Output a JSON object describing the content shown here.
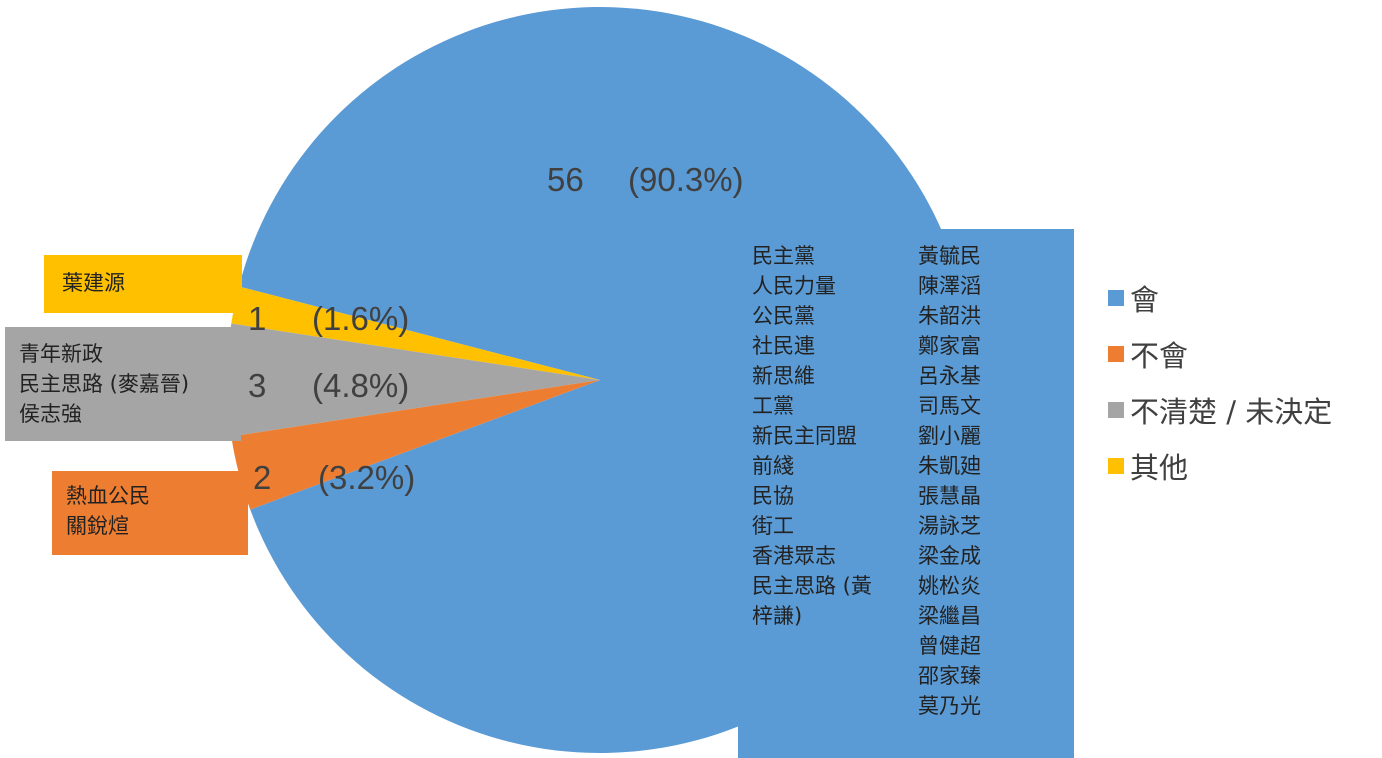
{
  "chart_data": {
    "type": "pie",
    "slices": [
      {
        "name": "會",
        "value": 56,
        "percent": "90.3%",
        "color": "#5B9BD5"
      },
      {
        "name": "不會",
        "value": 2,
        "percent": "3.2%",
        "color": "#ED7D31"
      },
      {
        "name": "不清楚 / 未決定",
        "value": 3,
        "percent": "4.8%",
        "color": "#A5A5A5"
      },
      {
        "name": "其他",
        "value": 1,
        "percent": "1.6%",
        "color": "#FFC000"
      }
    ],
    "data_labels": [
      {
        "count": "56",
        "percent": "(90.3%)"
      },
      {
        "count": "2",
        "percent": "(3.2%)"
      },
      {
        "count": "3",
        "percent": "(4.8%)"
      },
      {
        "count": "1",
        "percent": "(1.6%)"
      }
    ],
    "legend": [
      "會",
      "不會",
      "不清楚 / 未決定",
      "其他"
    ],
    "legend_position": "right",
    "callouts": {
      "yes_col1": [
        "民主黨",
        "人民力量",
        "公民黨",
        "社民連",
        "新思維",
        "工黨",
        "新民主同盟",
        "前綫",
        "民協",
        "街工",
        "香港眾志",
        "民主思路 (黃",
        "梓謙)"
      ],
      "yes_col2": [
        "黃毓民",
        "陳澤滔",
        "朱韶洪",
        "鄭家富",
        "呂永基",
        "司馬文",
        "劉小麗",
        "朱凱廸",
        "張慧晶",
        "湯詠芝",
        "梁金成",
        "姚松炎",
        "梁繼昌",
        "曾健超",
        "邵家臻",
        "莫乃光"
      ],
      "other": [
        "葉建源"
      ],
      "unsure": [
        "青年新政",
        "民主思路 (麥嘉晉)",
        "侯志強"
      ],
      "no": [
        "熱血公民",
        "關銳煊"
      ]
    }
  }
}
